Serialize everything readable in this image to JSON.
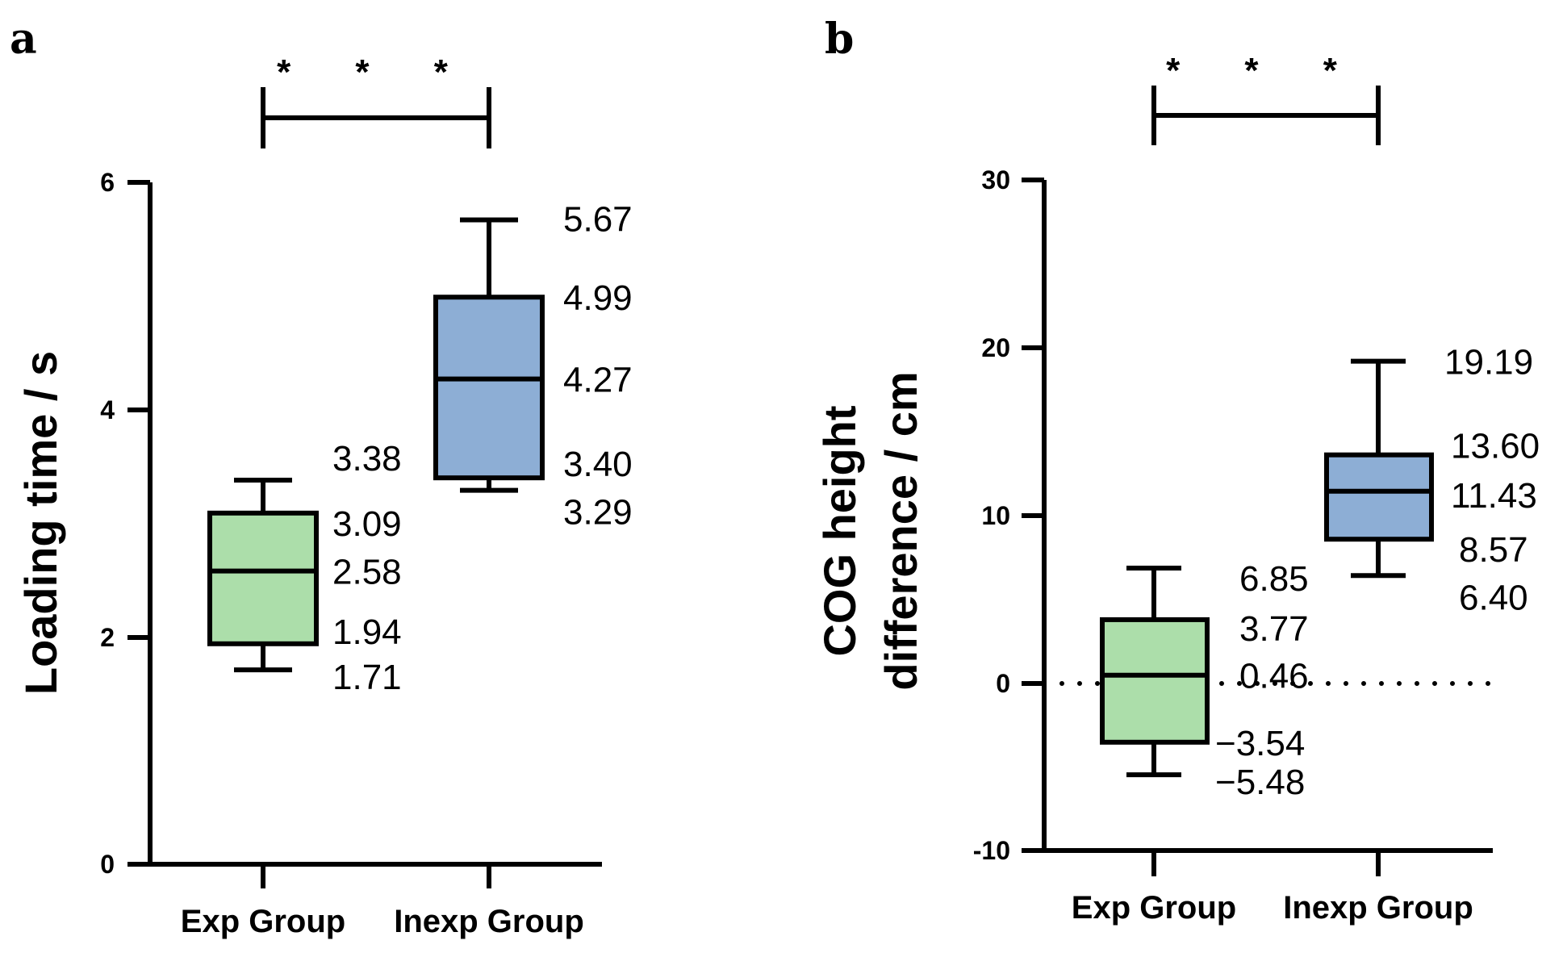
{
  "chart_data": [
    {
      "panel": "a",
      "type": "box",
      "ylabel": "Loading time / s",
      "ylim": [
        0,
        6
      ],
      "yticks": [
        "0",
        "2",
        "4",
        "6"
      ],
      "yticks_values": [
        0,
        2,
        4,
        6
      ],
      "zero_line": false,
      "significance": "* * *",
      "categories": [
        "Exp Group",
        "Inexp Group"
      ],
      "colors": [
        "#ACDEAA",
        "#8DAED5"
      ],
      "boxes": [
        {
          "name": "Exp Group",
          "max": 3.38,
          "q3": 3.09,
          "median": 2.58,
          "q1": 1.94,
          "min": 1.71,
          "labels": [
            "3.38",
            "3.09",
            "2.58",
            "1.94",
            "1.71"
          ]
        },
        {
          "name": "Inexp Group",
          "max": 5.67,
          "q3": 4.99,
          "median": 4.27,
          "q1": 3.4,
          "min": 3.29,
          "labels": [
            "5.67",
            "4.99",
            "4.27",
            "3.40",
            "3.29"
          ]
        }
      ]
    },
    {
      "panel": "b",
      "type": "box",
      "ylabel_lines": [
        "COG height",
        "difference / cm"
      ],
      "ylim": [
        -10,
        30
      ],
      "yticks": [
        "-10",
        "0",
        "10",
        "20",
        "30"
      ],
      "yticks_values": [
        -10,
        0,
        10,
        20,
        30
      ],
      "zero_line": true,
      "significance": "* * *",
      "categories": [
        "Exp Group",
        "Inexp Group"
      ],
      "colors": [
        "#ACDEAA",
        "#8DAED5"
      ],
      "boxes": [
        {
          "name": "Exp Group",
          "max": 6.85,
          "q3": 3.77,
          "median": 0.46,
          "q1": -3.54,
          "min": -5.48,
          "labels": [
            "6.85",
            "3.77",
            "0.46",
            "−3.54",
            "−5.48"
          ]
        },
        {
          "name": "Inexp Group",
          "max": 19.19,
          "q3": 13.6,
          "median": 11.43,
          "q1": 8.57,
          "min": 6.4,
          "labels": [
            "19.19",
            "13.60",
            "11.43",
            "8.57",
            "6.40"
          ]
        }
      ]
    }
  ]
}
